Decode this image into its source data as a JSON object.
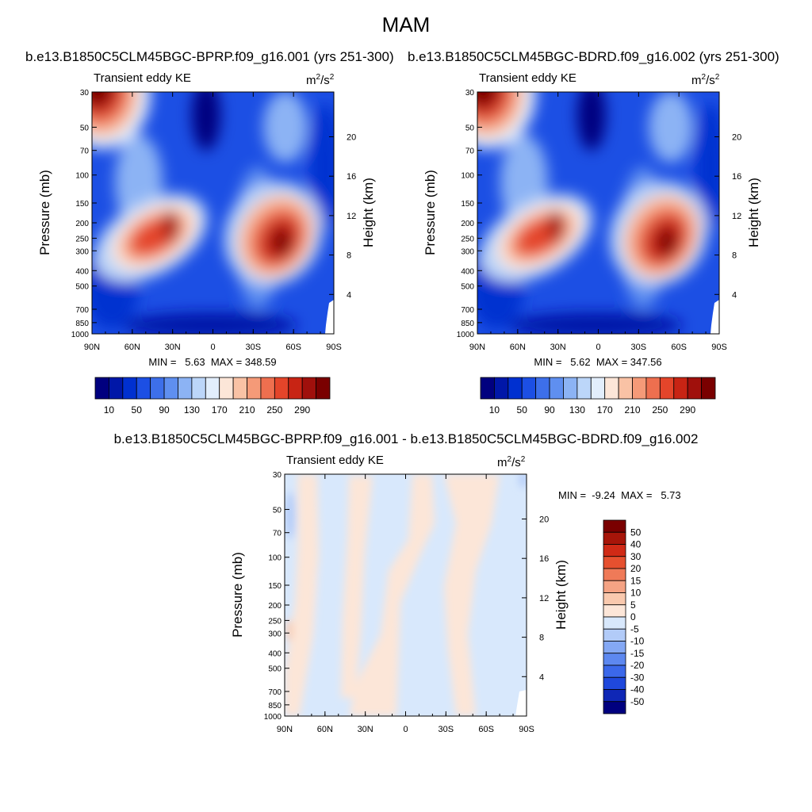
{
  "figure": {
    "title": "MAM"
  },
  "panels": {
    "a": {
      "header": "b.e13.B1850C5CLM45BGC-BPRP.f09_g16.001 (yrs 251-300)",
      "label_left": "Transient eddy KE",
      "units_base": "m",
      "units_sup1": "2",
      "units_mid": "/s",
      "units_sup2": "2",
      "ylabel": "Pressure (mb)",
      "y2label": "Height (km)",
      "stats": "MIN =   5.63  MAX = 348.59"
    },
    "b": {
      "header": "b.e13.B1850C5CLM45BGC-BDRD.f09_g16.002 (yrs 251-300)",
      "label_left": "Transient eddy KE",
      "units_base": "m",
      "units_sup1": "2",
      "units_mid": "/s",
      "units_sup2": "2",
      "ylabel": "Pressure (mb)",
      "y2label": "Height (km)",
      "stats": "MIN =   5.62  MAX = 347.56"
    },
    "diff": {
      "header": "b.e13.B1850C5CLM45BGC-BPRP.f09_g16.001 - b.e13.B1850C5CLM45BGC-BDRD.f09_g16.002",
      "label_left": "Transient eddy KE",
      "units_base": "m",
      "units_sup1": "2",
      "units_mid": "/s",
      "units_sup2": "2",
      "ylabel": "Pressure (mb)",
      "y2label": "Height (km)",
      "stats": "MIN =  -9.24  MAX =   5.73"
    }
  },
  "chart_data": [
    {
      "type": "heatmap",
      "title": "b.e13.B1850C5CLM45BGC-BPRP.f09_g16.001 (yrs 251-300)",
      "variable": "Transient eddy KE",
      "units": "m2/s2",
      "xlabel": "",
      "ylabel": "Pressure (mb)",
      "y2label": "Height (km)",
      "x_ticks": [
        "90N",
        "60N",
        "30N",
        "0",
        "30S",
        "60S",
        "90S"
      ],
      "y_ticks": [
        30,
        50,
        70,
        100,
        150,
        200,
        250,
        300,
        400,
        500,
        700,
        850,
        1000
      ],
      "y2_ticks": [
        4,
        8,
        12,
        16,
        20
      ],
      "min": 5.63,
      "max": 348.59,
      "contour_levels": [
        10,
        30,
        50,
        70,
        90,
        110,
        130,
        150,
        170,
        190,
        210,
        230,
        250,
        270,
        290
      ],
      "colorbar_labels": [
        "10",
        "50",
        "90",
        "130",
        "170",
        "210",
        "250",
        "290"
      ],
      "features": [
        {
          "lat": 80,
          "p": 30,
          "value": 290,
          "note": "high-latitude stratospheric maximum (top-left)"
        },
        {
          "lat": 40,
          "p": 260,
          "value": 250,
          "note": "northern jet-level maximum"
        },
        {
          "lat": -50,
          "p": 280,
          "value": 345,
          "note": "southern jet-level maximum"
        },
        {
          "lat": 0,
          "p": 1000,
          "value": 10,
          "note": "tropical surface minimum"
        }
      ]
    },
    {
      "type": "heatmap",
      "title": "b.e13.B1850C5CLM45BGC-BDRD.f09_g16.002 (yrs 251-300)",
      "variable": "Transient eddy KE",
      "units": "m2/s2",
      "xlabel": "",
      "ylabel": "Pressure (mb)",
      "y2label": "Height (km)",
      "x_ticks": [
        "90N",
        "60N",
        "30N",
        "0",
        "30S",
        "60S",
        "90S"
      ],
      "y_ticks": [
        30,
        50,
        70,
        100,
        150,
        200,
        250,
        300,
        400,
        500,
        700,
        850,
        1000
      ],
      "y2_ticks": [
        4,
        8,
        12,
        16,
        20
      ],
      "min": 5.62,
      "max": 347.56,
      "contour_levels": [
        10,
        30,
        50,
        70,
        90,
        110,
        130,
        150,
        170,
        190,
        210,
        230,
        250,
        270,
        290
      ],
      "colorbar_labels": [
        "10",
        "50",
        "90",
        "130",
        "170",
        "210",
        "250",
        "290"
      ],
      "features": [
        {
          "lat": 80,
          "p": 30,
          "value": 290,
          "note": "high-latitude stratospheric maximum (top-left)"
        },
        {
          "lat": 40,
          "p": 260,
          "value": 250,
          "note": "northern jet-level maximum"
        },
        {
          "lat": -50,
          "p": 280,
          "value": 345,
          "note": "southern jet-level maximum"
        },
        {
          "lat": 0,
          "p": 1000,
          "value": 10,
          "note": "tropical surface minimum"
        }
      ]
    },
    {
      "type": "heatmap",
      "title": "b.e13.B1850C5CLM45BGC-BPRP.f09_g16.001 - b.e13.B1850C5CLM45BGC-BDRD.f09_g16.002",
      "variable": "Transient eddy KE",
      "units": "m2/s2",
      "xlabel": "",
      "ylabel": "Pressure (mb)",
      "y2label": "Height (km)",
      "x_ticks": [
        "90N",
        "60N",
        "30N",
        "0",
        "30S",
        "60S",
        "90S"
      ],
      "y_ticks": [
        30,
        50,
        70,
        100,
        150,
        200,
        250,
        300,
        400,
        500,
        700,
        850,
        1000
      ],
      "y2_ticks": [
        4,
        8,
        12,
        16,
        20
      ],
      "min": -9.24,
      "max": 5.73,
      "contour_levels": [
        -50,
        -40,
        -30,
        -20,
        -15,
        -10,
        -5,
        0,
        5,
        10,
        15,
        20,
        30,
        40,
        50
      ],
      "colorbar_labels": [
        "50",
        "40",
        "30",
        "20",
        "15",
        "10",
        "5",
        "0",
        "-5",
        "-10",
        "-15",
        "-20",
        "-30",
        "-40",
        "-50"
      ],
      "features": [
        {
          "lat": 65,
          "p": 100,
          "value": 2,
          "note": "weak positive band"
        },
        {
          "lat": 15,
          "p": 400,
          "value": 2,
          "note": "weak positive band"
        },
        {
          "lat": -30,
          "p": 150,
          "value": 2,
          "note": "weak positive band"
        },
        {
          "lat": -55,
          "p": 700,
          "value": 2,
          "note": "weak positive band"
        },
        {
          "lat": 85,
          "p": 70,
          "value": -6,
          "note": "weak negative near pole"
        }
      ]
    }
  ],
  "colors": {
    "ke_scale": [
      "#00007f",
      "#0017a8",
      "#0030d0",
      "#1c4fe4",
      "#3d6fea",
      "#5f8ff0",
      "#8cb3f4",
      "#bcd6f9",
      "#e2eefc",
      "#fce6d8",
      "#f9c2a5",
      "#f59a78",
      "#ee6f4f",
      "#e4452a",
      "#c82414",
      "#a0100c",
      "#7a0000"
    ],
    "diff_scale": [
      "#00007f",
      "#0f27b6",
      "#1f48dc",
      "#3b68ea",
      "#5d88f0",
      "#84a8f4",
      "#b2cbf8",
      "#d8e8fc",
      "#fce6d8",
      "#f9c9ae",
      "#f5a384",
      "#ef7a58",
      "#e6502f",
      "#d02a16",
      "#a71509",
      "#7a0000"
    ]
  }
}
